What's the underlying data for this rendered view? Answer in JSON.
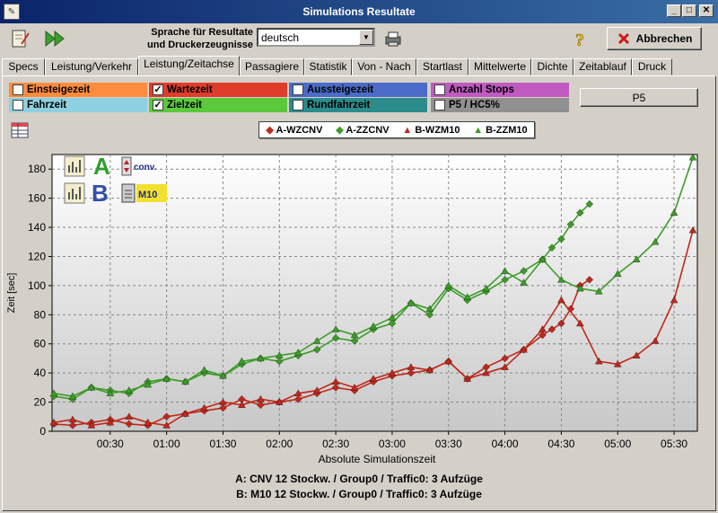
{
  "window": {
    "title": "Simulations Resultate"
  },
  "toolbar": {
    "lang_label_1": "Sprache für Resultate",
    "lang_label_2": "und Druckerzeugnisse",
    "lang_value": "deutsch",
    "abbrechen_label": "Abbrechen"
  },
  "tabs": [
    {
      "label": "Specs"
    },
    {
      "label": "Leistung/Verkehr"
    },
    {
      "label": "Leistung/Zeitachse"
    },
    {
      "label": "Passagiere"
    },
    {
      "label": "Statistik"
    },
    {
      "label": "Von - Nach"
    },
    {
      "label": "Startlast"
    },
    {
      "label": "Mittelwerte"
    },
    {
      "label": "Dichte"
    },
    {
      "label": "Zeitablauf"
    },
    {
      "label": "Druck"
    }
  ],
  "filters": [
    {
      "label": "Einsteigezeit",
      "checked": false,
      "color": "#ff8c3c"
    },
    {
      "label": "Wartezeit",
      "checked": true,
      "color": "#e03c2c"
    },
    {
      "label": "Aussteigezeit",
      "checked": false,
      "color": "#4a6cc8"
    },
    {
      "label": "Anzahl Stops",
      "checked": false,
      "color": "#c05ac0"
    },
    {
      "label": "Fahrzeit",
      "checked": false,
      "color": "#8ed0e0"
    },
    {
      "label": "Zielzeit",
      "checked": true,
      "color": "#5cc83c"
    },
    {
      "label": "Rundfahrzeit",
      "checked": false,
      "color": "#2c8c8c"
    },
    {
      "label": "P5 / HC5%",
      "checked": false,
      "color": "#909090"
    }
  ],
  "p5_button": "P5",
  "chart_icons": {
    "a_letter": "A",
    "b_letter": "B",
    "conv": "conv.",
    "m10": "M10"
  },
  "footer": {
    "line_a": "A: CNV  12 Stockw. / Group0 / Traffic0: 3 Aufzüge",
    "line_b": "B: M10  12 Stockw. / Group0 / Traffic0: 3 Aufzüge"
  },
  "chart_data": {
    "type": "line",
    "ylabel": "Zeit [sec]",
    "xlabel": "Absolute Simulationszeit",
    "ylim": [
      0,
      190
    ],
    "xlim": [
      0,
      340
    ],
    "yticks": [
      0,
      20,
      40,
      60,
      80,
      100,
      120,
      140,
      160,
      180
    ],
    "xticks": [
      {
        "v": 30,
        "label": "00:30"
      },
      {
        "v": 60,
        "label": "01:00"
      },
      {
        "v": 90,
        "label": "01:30"
      },
      {
        "v": 120,
        "label": "02:00"
      },
      {
        "v": 150,
        "label": "02:30"
      },
      {
        "v": 180,
        "label": "03:00"
      },
      {
        "v": 210,
        "label": "03:30"
      },
      {
        "v": 240,
        "label": "04:00"
      },
      {
        "v": 270,
        "label": "04:30"
      },
      {
        "v": 300,
        "label": "05:00"
      },
      {
        "v": 330,
        "label": "05:30"
      }
    ],
    "grid": true,
    "legend_position": "top",
    "series": [
      {
        "name": "A-WZCNV",
        "color": "#c0281c",
        "marker": "diamond",
        "x": [
          0,
          10,
          20,
          30,
          40,
          50,
          60,
          70,
          80,
          90,
          100,
          110,
          120,
          130,
          140,
          150,
          160,
          170,
          180,
          190,
          200,
          210,
          220,
          230,
          240,
          250,
          260,
          265,
          270,
          275,
          280,
          285
        ],
        "y": [
          5,
          4,
          6,
          8,
          5,
          4,
          10,
          12,
          14,
          16,
          22,
          18,
          20,
          22,
          26,
          30,
          28,
          34,
          38,
          40,
          42,
          48,
          36,
          44,
          50,
          56,
          66,
          70,
          74,
          84,
          100,
          104
        ]
      },
      {
        "name": "A-ZZCNV",
        "color": "#3c9c28",
        "marker": "diamond",
        "x": [
          0,
          10,
          20,
          30,
          40,
          50,
          60,
          70,
          80,
          90,
          100,
          110,
          120,
          130,
          140,
          150,
          160,
          170,
          180,
          190,
          200,
          210,
          220,
          230,
          240,
          250,
          260,
          265,
          270,
          275,
          280,
          285
        ],
        "y": [
          24,
          22,
          30,
          28,
          26,
          34,
          36,
          34,
          40,
          38,
          46,
          50,
          48,
          52,
          56,
          64,
          62,
          70,
          74,
          88,
          80,
          98,
          90,
          96,
          104,
          110,
          118,
          126,
          132,
          142,
          150,
          156
        ]
      },
      {
        "name": "B-WZM10",
        "color": "#c0281c",
        "marker": "triangle",
        "x": [
          0,
          10,
          20,
          30,
          40,
          50,
          60,
          70,
          80,
          90,
          100,
          110,
          120,
          130,
          140,
          150,
          160,
          170,
          180,
          190,
          200,
          210,
          220,
          230,
          240,
          250,
          260,
          270,
          280,
          290,
          300,
          310,
          320,
          330,
          340
        ],
        "y": [
          6,
          8,
          4,
          6,
          10,
          6,
          4,
          12,
          16,
          20,
          18,
          22,
          20,
          26,
          28,
          34,
          30,
          36,
          40,
          44,
          42,
          48,
          36,
          40,
          44,
          56,
          70,
          90,
          74,
          48,
          46,
          52,
          62,
          90,
          138
        ]
      },
      {
        "name": "B-ZZM10",
        "color": "#3c9c28",
        "marker": "triangle",
        "x": [
          0,
          10,
          20,
          30,
          40,
          50,
          60,
          70,
          80,
          90,
          100,
          110,
          120,
          130,
          140,
          150,
          160,
          170,
          180,
          190,
          200,
          210,
          220,
          230,
          240,
          250,
          260,
          270,
          280,
          290,
          300,
          310,
          320,
          330,
          340
        ],
        "y": [
          26,
          24,
          30,
          26,
          28,
          32,
          36,
          34,
          42,
          38,
          48,
          50,
          52,
          54,
          62,
          70,
          66,
          72,
          78,
          88,
          84,
          100,
          92,
          98,
          110,
          102,
          118,
          104,
          98,
          96,
          108,
          118,
          130,
          150,
          188
        ]
      }
    ]
  }
}
